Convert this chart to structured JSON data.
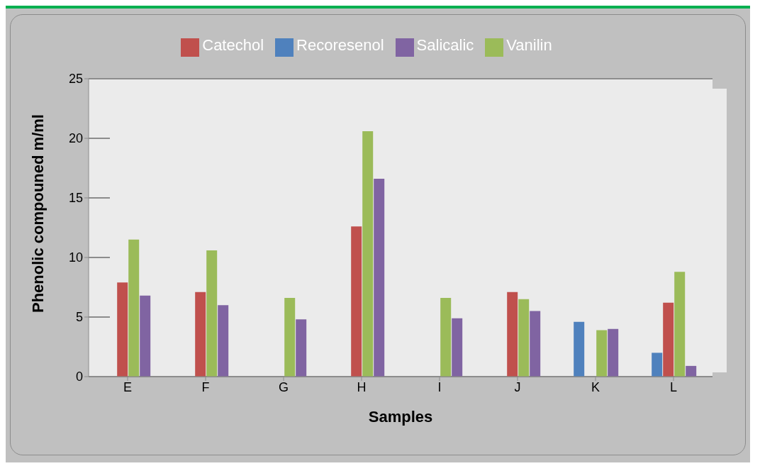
{
  "chart_data": {
    "type": "bar",
    "xlabel": "Samples",
    "ylabel": "Phenolic compouned m/ml",
    "categories": [
      "E",
      "F",
      "G",
      "H",
      "I",
      "J",
      "K",
      "L"
    ],
    "series": [
      {
        "name": "Recoresenol",
        "color": "#4f81bd",
        "values": [
          0,
          0,
          0,
          0,
          0,
          0,
          4.6,
          2.0
        ]
      },
      {
        "name": "Catechol",
        "color": "#c0504d",
        "values": [
          7.9,
          7.1,
          0,
          12.6,
          0,
          7.1,
          0,
          6.2
        ]
      },
      {
        "name": "Vanilin",
        "color": "#9bbb59",
        "values": [
          11.5,
          10.6,
          6.6,
          20.6,
          6.6,
          6.5,
          3.9,
          8.8
        ]
      },
      {
        "name": "Salicalic",
        "color": "#8064a2",
        "values": [
          6.8,
          6.0,
          4.8,
          16.6,
          4.9,
          5.5,
          4.0,
          0.9
        ]
      }
    ],
    "ylim": [
      0,
      25
    ],
    "yticks": [
      0,
      5,
      10,
      15,
      20,
      25
    ],
    "grid": "y",
    "legend": "top"
  }
}
